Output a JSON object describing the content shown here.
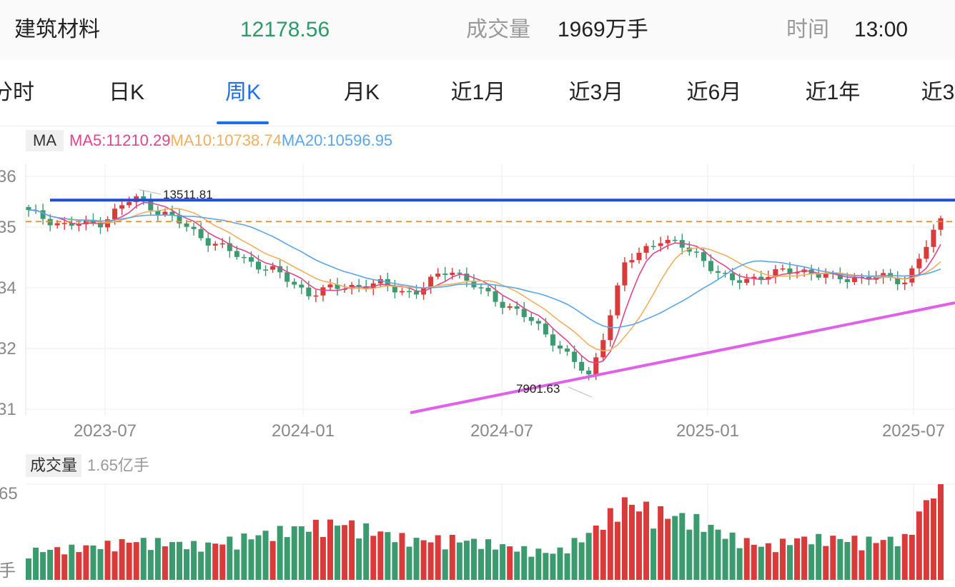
{
  "header": {
    "name": "建筑材料",
    "price": "12178.56",
    "volume_label": "成交量",
    "volume_value": "1969万手",
    "time_label": "时间",
    "time_value": "13:00"
  },
  "tabs": [
    "分时",
    "日K",
    "周K",
    "月K",
    "近1月",
    "近3月",
    "近6月",
    "近1年",
    "近3"
  ],
  "active_tab": "周K",
  "ma": {
    "label": "MA",
    "ma5": "MA5:11210.29",
    "ma10": "MA10:10738.74",
    "ma20": "MA20:10596.95"
  },
  "volume_panel": {
    "label": "成交量",
    "max_text": "1.65亿手",
    "y_tick_top": "65",
    "y_tick_bottom": "手"
  },
  "colors": {
    "up": "#d93b3b",
    "down": "#3b9a6e",
    "ma5": "#e0468a",
    "ma10": "#f0b060",
    "ma20": "#5aa6ea",
    "resistance_line": "#1f4fd8",
    "support_line": "#e060e8",
    "dashed_line": "#f08a2a",
    "price": "#2e9a6a",
    "active_tab": "#1f6fe8"
  },
  "chart_data": {
    "type": "candlestick",
    "y_axis_ticks": [
      "36",
      "35",
      "34",
      "32",
      "31"
    ],
    "x_axis_ticks": [
      "2023-07",
      "2024-01",
      "2024-07",
      "2025-01",
      "2025-07"
    ],
    "annotations": {
      "high": "13511.81",
      "low": "7901.63"
    },
    "ylim": [
      7400,
      14200
    ],
    "reference_lines": {
      "dashed_level": 12650,
      "resistance_level": 13230
    },
    "close_points": [
      {
        "date": "2023-05",
        "close": 12900
      },
      {
        "date": "2023-06",
        "close": 12550
      },
      {
        "date": "2023-07",
        "close": 12600
      },
      {
        "date": "2023-08",
        "close": 13300
      },
      {
        "date": "2023-09",
        "close": 12800
      },
      {
        "date": "2023-10",
        "close": 12200
      },
      {
        "date": "2023-11",
        "close": 11700
      },
      {
        "date": "2023-12",
        "close": 11300
      },
      {
        "date": "2024-01",
        "close": 10700
      },
      {
        "date": "2024-02",
        "close": 10900
      },
      {
        "date": "2024-03",
        "close": 10950
      },
      {
        "date": "2024-04",
        "close": 10700
      },
      {
        "date": "2024-05",
        "close": 11400
      },
      {
        "date": "2024-06",
        "close": 10700
      },
      {
        "date": "2024-07",
        "close": 10200
      },
      {
        "date": "2024-08",
        "close": 9400
      },
      {
        "date": "2024-09",
        "close": 8400
      },
      {
        "date": "2024-10",
        "close": 11500
      },
      {
        "date": "2024-11",
        "close": 12200
      },
      {
        "date": "2024-12",
        "close": 11800
      },
      {
        "date": "2025-01",
        "close": 11000
      },
      {
        "date": "2025-02",
        "close": 11200
      },
      {
        "date": "2025-03",
        "close": 11350
      },
      {
        "date": "2025-04",
        "close": 11100
      },
      {
        "date": "2025-05",
        "close": 11150
      },
      {
        "date": "2025-06",
        "close": 11050
      },
      {
        "date": "2025-07",
        "close": 12650
      }
    ],
    "volume_relative": [
      0.28,
      0.3,
      0.33,
      0.38,
      0.36,
      0.33,
      0.4,
      0.46,
      0.52,
      0.55,
      0.46,
      0.38,
      0.4,
      0.36,
      0.3,
      0.26,
      0.45,
      0.75,
      0.65,
      0.58,
      0.42,
      0.32,
      0.4,
      0.4,
      0.38,
      0.4,
      1.0
    ]
  }
}
